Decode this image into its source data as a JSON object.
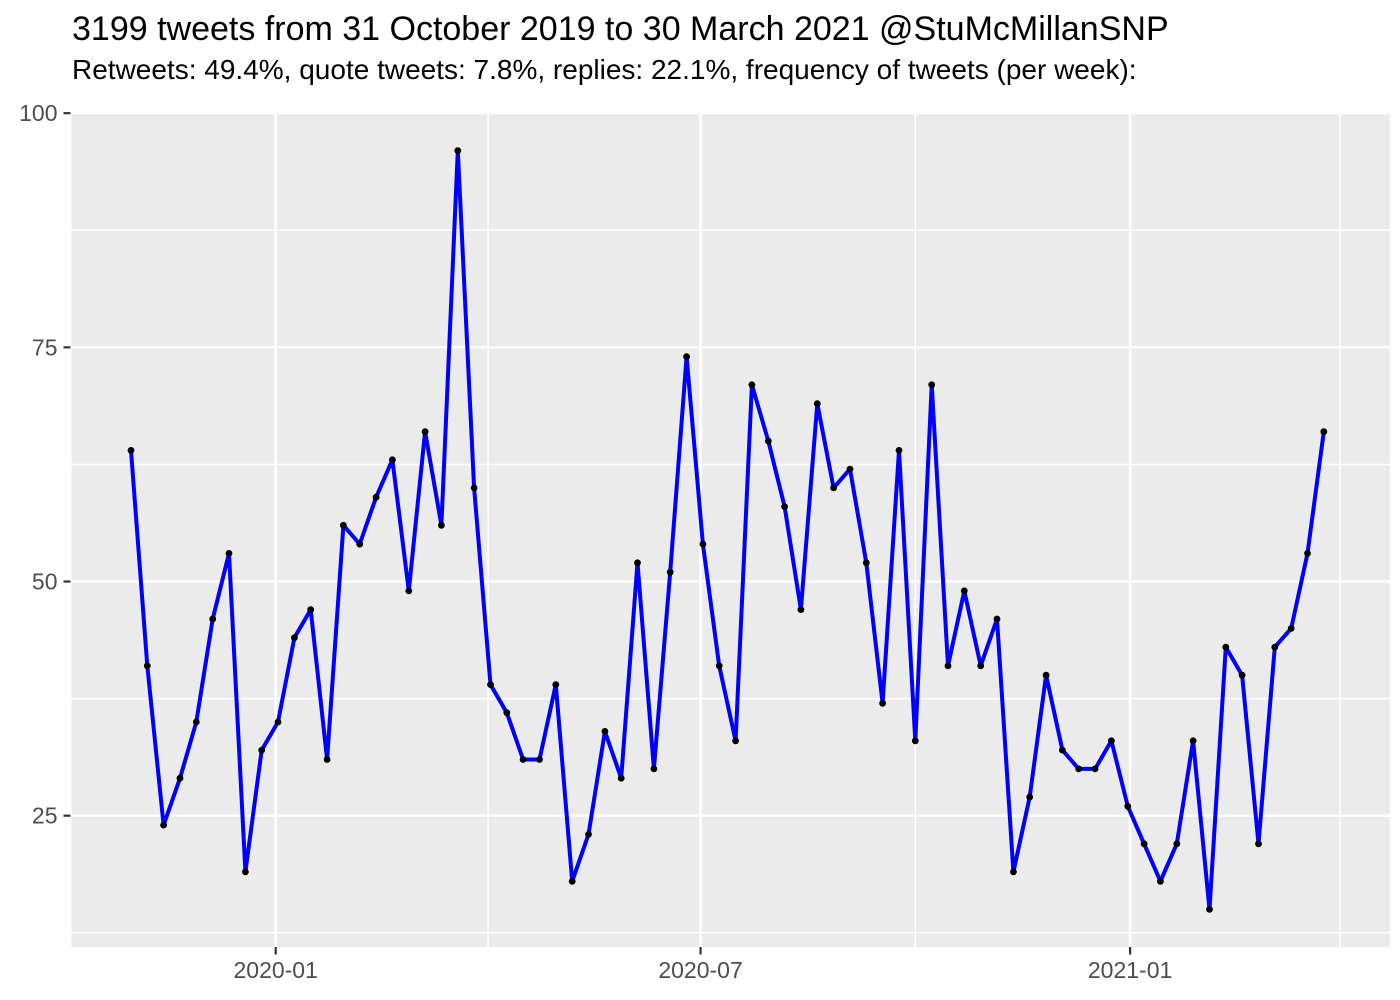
{
  "header": {
    "title": "3199 tweets from 31 October 2019 to 30 March 2021 @StuMcMillanSNP",
    "subtitle": "Retweets: 49.4%, quote tweets: 7.8%, replies: 22.1%, frequency of tweets (per week):"
  },
  "chart_data": {
    "type": "line",
    "title": "3199 tweets from 31 October 2019 to 30 March 2021 @StuMcMillanSNP",
    "subtitle": "Retweets: 49.4%, quote tweets: 7.8%, replies: 22.1%, frequency of tweets (per week):",
    "series_name": "tweets per week",
    "xlabel": "",
    "ylabel": "",
    "ylim": [
      11,
      100
    ],
    "grid": true,
    "legend_position": "none",
    "x": [
      "2019-10-31",
      "2019-11-07",
      "2019-11-14",
      "2019-11-21",
      "2019-11-28",
      "2019-12-05",
      "2019-12-12",
      "2019-12-19",
      "2019-12-26",
      "2020-01-02",
      "2020-01-09",
      "2020-01-16",
      "2020-01-23",
      "2020-01-30",
      "2020-02-06",
      "2020-02-13",
      "2020-02-20",
      "2020-02-27",
      "2020-03-05",
      "2020-03-12",
      "2020-03-19",
      "2020-03-26",
      "2020-04-02",
      "2020-04-09",
      "2020-04-16",
      "2020-04-23",
      "2020-04-30",
      "2020-05-07",
      "2020-05-14",
      "2020-05-21",
      "2020-05-28",
      "2020-06-04",
      "2020-06-11",
      "2020-06-18",
      "2020-06-25",
      "2020-07-02",
      "2020-07-09",
      "2020-07-16",
      "2020-07-23",
      "2020-07-30",
      "2020-08-06",
      "2020-08-13",
      "2020-08-20",
      "2020-08-27",
      "2020-09-03",
      "2020-09-10",
      "2020-09-17",
      "2020-09-24",
      "2020-10-01",
      "2020-10-08",
      "2020-10-15",
      "2020-10-22",
      "2020-10-29",
      "2020-11-05",
      "2020-11-12",
      "2020-11-19",
      "2020-11-26",
      "2020-12-03",
      "2020-12-10",
      "2020-12-17",
      "2020-12-24",
      "2020-12-31",
      "2021-01-07",
      "2021-01-14",
      "2021-01-21",
      "2021-01-28",
      "2021-02-04",
      "2021-02-11",
      "2021-02-18",
      "2021-02-25",
      "2021-03-04",
      "2021-03-11",
      "2021-03-18",
      "2021-03-25"
    ],
    "values": [
      64,
      41,
      24,
      29,
      35,
      46,
      53,
      19,
      32,
      35,
      44,
      47,
      31,
      56,
      54,
      59,
      63,
      49,
      66,
      56,
      96,
      60,
      39,
      36,
      31,
      31,
      39,
      18,
      23,
      34,
      29,
      52,
      30,
      51,
      74,
      54,
      41,
      33,
      71,
      65,
      58,
      47,
      69,
      60,
      62,
      52,
      37,
      64,
      33,
      71,
      41,
      49,
      41,
      46,
      19,
      27,
      40,
      32,
      30,
      30,
      33,
      26,
      22,
      18,
      22,
      33,
      15,
      43,
      40,
      22,
      43,
      45,
      53,
      66
    ],
    "y_axis": {
      "major": [
        {
          "value": 100,
          "label": "100"
        },
        {
          "value": 75,
          "label": "75"
        },
        {
          "value": 50,
          "label": "50"
        },
        {
          "value": 25,
          "label": "25"
        }
      ],
      "minor": [
        87.5,
        62.5,
        37.5,
        12.5
      ]
    },
    "x_axis": {
      "major": [
        {
          "date": "2020-01-01",
          "label": "2020-01"
        },
        {
          "date": "2020-07-01",
          "label": "2020-07"
        },
        {
          "date": "2021-01-01",
          "label": "2021-01"
        }
      ],
      "minor": [
        "2020-04-01",
        "2020-10-01",
        "2021-04-01"
      ]
    },
    "colors": {
      "line": "#0000FF",
      "point": "#000000",
      "panel_background": "#EBEBEB",
      "gridline": "#FFFFFF",
      "axis_text": "#4D4D4D",
      "tick_mark": "#333333",
      "title_text": "#000000"
    }
  }
}
